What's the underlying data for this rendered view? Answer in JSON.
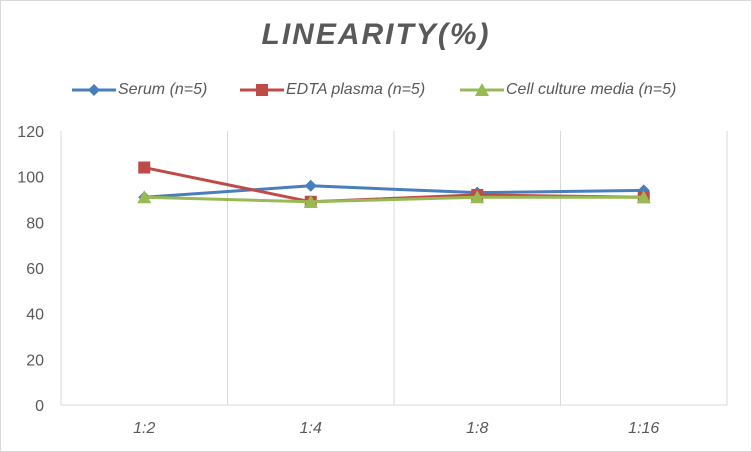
{
  "chart_data": {
    "type": "line",
    "title": "LINEARITY(%)",
    "xlabel": "",
    "ylabel": "",
    "categories": [
      "1:2",
      "1:4",
      "1:8",
      "1:16"
    ],
    "ylim": [
      0,
      120
    ],
    "yticks": [
      0,
      20,
      40,
      60,
      80,
      100,
      120
    ],
    "grid": "vertical",
    "legend_position": "top",
    "series": [
      {
        "name": "Serum (n=5)",
        "values": [
          91,
          96,
          93,
          94
        ],
        "color": "#4a7ebb",
        "marker": "diamond"
      },
      {
        "name": "EDTA plasma (n=5)",
        "values": [
          104,
          89,
          92,
          91
        ],
        "color": "#be4b48",
        "marker": "square"
      },
      {
        "name": "Cell culture media (n=5)",
        "values": [
          91,
          89,
          91,
          91
        ],
        "color": "#98b954",
        "marker": "triangle"
      }
    ]
  }
}
